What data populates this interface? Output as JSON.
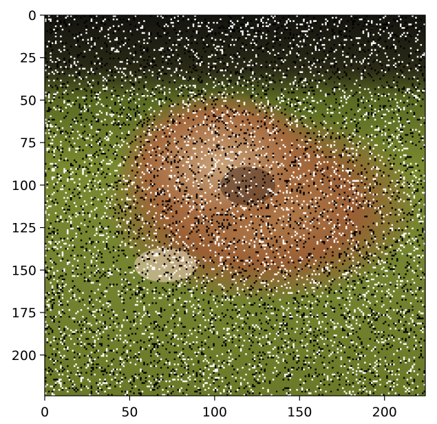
{
  "figure": {
    "image_description_colors": {
      "background_top": "#1a1a12",
      "grass": "#6f7f2a",
      "dog_fur": "#a0663c",
      "dog_face": "#b9885a",
      "noise_white": "#ffffff",
      "noise_black": "#000000"
    },
    "axes": {
      "x_ticks": [
        "0",
        "50",
        "100",
        "150",
        "200"
      ],
      "y_ticks": [
        "0",
        "25",
        "50",
        "75",
        "100",
        "125",
        "150",
        "175",
        "200"
      ]
    }
  },
  "chart_data": {
    "type": "heatmap",
    "title": "",
    "xlabel": "",
    "ylabel": "",
    "xlim": [
      0,
      224
    ],
    "ylim": [
      224,
      0
    ],
    "x_tick_values": [
      0,
      50,
      100,
      150,
      200
    ],
    "y_tick_values": [
      0,
      25,
      50,
      75,
      100,
      125,
      150,
      175,
      200
    ],
    "grid": false,
    "content": "image-with-salt-and-pepper-noise"
  }
}
